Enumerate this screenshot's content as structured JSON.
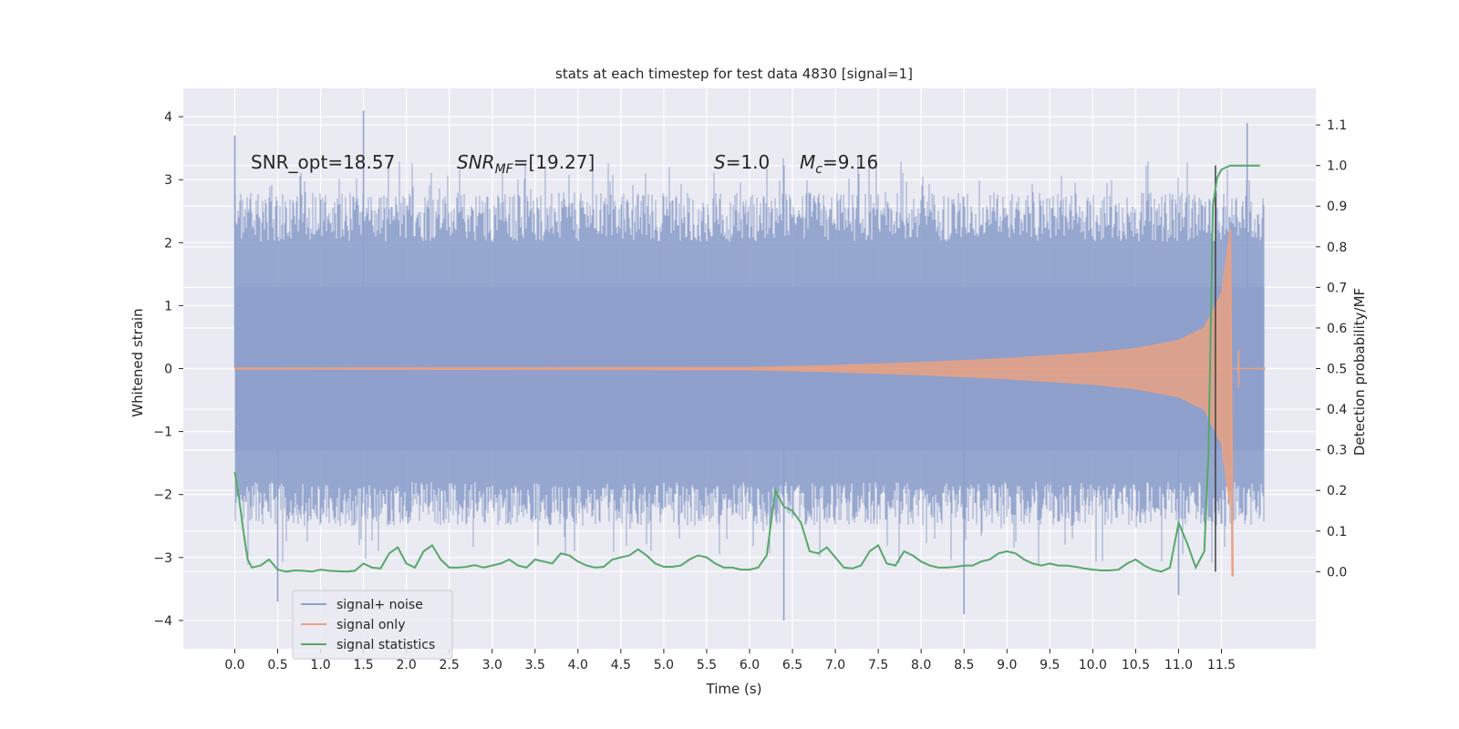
{
  "chart_data": {
    "type": "line",
    "title": "stats at each timestep for test data 4830 [signal=1]",
    "xlabel": "Time (s)",
    "ylabel": "Whitened strain",
    "y2label": "Detection probability/MF",
    "xlim": [
      -0.6,
      12.6
    ],
    "ylim": [
      -4.45,
      4.45
    ],
    "y2lim": [
      -0.19,
      1.19
    ],
    "x_ticks": [
      "0.0",
      "0.5",
      "1.0",
      "1.5",
      "2.0",
      "2.5",
      "3.0",
      "3.5",
      "4.0",
      "4.5",
      "5.0",
      "5.5",
      "6.0",
      "6.5",
      "7.0",
      "7.5",
      "8.0",
      "8.5",
      "9.0",
      "9.5",
      "10.0",
      "10.5",
      "11.0",
      "11.5"
    ],
    "y_ticks": [
      "4",
      "3",
      "2",
      "1",
      "0",
      "−1",
      "−2",
      "−3",
      "−4"
    ],
    "y2_ticks": [
      "1.1",
      "1.0",
      "0.9",
      "0.8",
      "0.7",
      "0.6",
      "0.5",
      "0.4",
      "0.3",
      "0.2",
      "0.1",
      "0.0"
    ],
    "grid": true,
    "legend_position": "lower-left",
    "colors": {
      "noise": "#8da0cb",
      "signal": "#e8a184",
      "stats": "#55a868",
      "background": "#eaeaf2"
    },
    "annotations": {
      "snr_opt": "SNR_opt=18.57",
      "snr_mf_base": "SNR",
      "snr_mf_sub": "MF",
      "snr_mf_value": "=[19.27]",
      "s_base": "S",
      "s_value": "=1.0",
      "mc_base": "M",
      "mc_sub": "c",
      "mc_value": "=9.16"
    },
    "series": [
      {
        "name": "signal+ noise",
        "axis": "left",
        "t_start": 0.0,
        "t_end": 12.0,
        "core_band": [
          -1.3,
          1.3
        ],
        "typical_extremes": [
          -2.5,
          2.8
        ],
        "notable_peaks": [
          [
            0.0,
            3.7
          ],
          [
            1.5,
            4.1
          ],
          [
            0.5,
            -3.7
          ],
          [
            6.4,
            -4.0
          ],
          [
            8.5,
            -3.9
          ],
          [
            11.8,
            3.9
          ],
          [
            11.0,
            -3.6
          ]
        ]
      },
      {
        "name": "signal only",
        "axis": "left",
        "t_start": 0.0,
        "t_end": 12.0,
        "merger_time": 11.63,
        "envelope": [
          [
            0.0,
            0.01
          ],
          [
            6.0,
            0.02
          ],
          [
            7.0,
            0.05
          ],
          [
            8.0,
            0.1
          ],
          [
            9.0,
            0.16
          ],
          [
            10.0,
            0.25
          ],
          [
            10.5,
            0.32
          ],
          [
            11.0,
            0.45
          ],
          [
            11.3,
            0.65
          ],
          [
            11.5,
            1.2
          ],
          [
            11.6,
            2.2
          ],
          [
            11.63,
            -3.3
          ],
          [
            11.7,
            0.3
          ],
          [
            12.0,
            0.02
          ]
        ]
      },
      {
        "name": "signal statistics",
        "axis": "right",
        "t": [
          0.0,
          0.05,
          0.1,
          0.15,
          0.2,
          0.3,
          0.4,
          0.5,
          0.6,
          0.7,
          0.8,
          0.9,
          1.0,
          1.1,
          1.2,
          1.3,
          1.4,
          1.5,
          1.6,
          1.7,
          1.8,
          1.9,
          2.0,
          2.1,
          2.2,
          2.3,
          2.4,
          2.5,
          2.6,
          2.7,
          2.8,
          2.9,
          3.0,
          3.1,
          3.2,
          3.3,
          3.4,
          3.5,
          3.6,
          3.7,
          3.8,
          3.9,
          4.0,
          4.1,
          4.2,
          4.3,
          4.4,
          4.5,
          4.6,
          4.7,
          4.8,
          4.9,
          5.0,
          5.1,
          5.2,
          5.3,
          5.4,
          5.5,
          5.6,
          5.7,
          5.8,
          5.9,
          6.0,
          6.1,
          6.2,
          6.3,
          6.4,
          6.5,
          6.6,
          6.7,
          6.8,
          6.9,
          7.0,
          7.1,
          7.2,
          7.3,
          7.4,
          7.5,
          7.6,
          7.7,
          7.8,
          7.9,
          8.0,
          8.1,
          8.2,
          8.3,
          8.4,
          8.5,
          8.6,
          8.7,
          8.8,
          8.9,
          9.0,
          9.1,
          9.2,
          9.3,
          9.4,
          9.5,
          9.6,
          9.7,
          9.8,
          9.9,
          10.0,
          10.1,
          10.2,
          10.3,
          10.4,
          10.5,
          10.6,
          10.7,
          10.8,
          10.9,
          11.0,
          11.1,
          11.2,
          11.3,
          11.35,
          11.4,
          11.45,
          11.5,
          11.55,
          11.6,
          11.7,
          11.8,
          11.9,
          11.95
        ],
        "values": [
          0.245,
          0.18,
          0.1,
          0.03,
          0.01,
          0.015,
          0.03,
          0.005,
          0.0,
          0.003,
          0.002,
          0.0,
          0.005,
          0.002,
          0.001,
          0.0,
          0.002,
          0.02,
          0.01,
          0.008,
          0.045,
          0.06,
          0.02,
          0.01,
          0.05,
          0.065,
          0.03,
          0.01,
          0.01,
          0.012,
          0.016,
          0.01,
          0.015,
          0.02,
          0.03,
          0.015,
          0.01,
          0.03,
          0.025,
          0.02,
          0.045,
          0.04,
          0.025,
          0.015,
          0.01,
          0.012,
          0.03,
          0.035,
          0.04,
          0.055,
          0.04,
          0.02,
          0.012,
          0.012,
          0.015,
          0.03,
          0.04,
          0.035,
          0.02,
          0.01,
          0.01,
          0.005,
          0.005,
          0.01,
          0.04,
          0.2,
          0.16,
          0.15,
          0.12,
          0.05,
          0.045,
          0.06,
          0.035,
          0.01,
          0.008,
          0.015,
          0.05,
          0.065,
          0.02,
          0.015,
          0.05,
          0.04,
          0.025,
          0.015,
          0.01,
          0.01,
          0.012,
          0.015,
          0.015,
          0.025,
          0.03,
          0.045,
          0.05,
          0.045,
          0.03,
          0.02,
          0.015,
          0.02,
          0.015,
          0.015,
          0.012,
          0.008,
          0.005,
          0.003,
          0.003,
          0.005,
          0.02,
          0.03,
          0.015,
          0.005,
          0.0,
          0.01,
          0.12,
          0.07,
          0.01,
          0.05,
          0.3,
          0.9,
          0.97,
          0.99,
          0.995,
          1.0,
          1.0,
          1.0,
          1.0,
          1.0
        ],
        "vertical_marker_time": 11.43
      }
    ],
    "legend": [
      "signal+ noise",
      "signal only",
      "signal statistics"
    ]
  }
}
